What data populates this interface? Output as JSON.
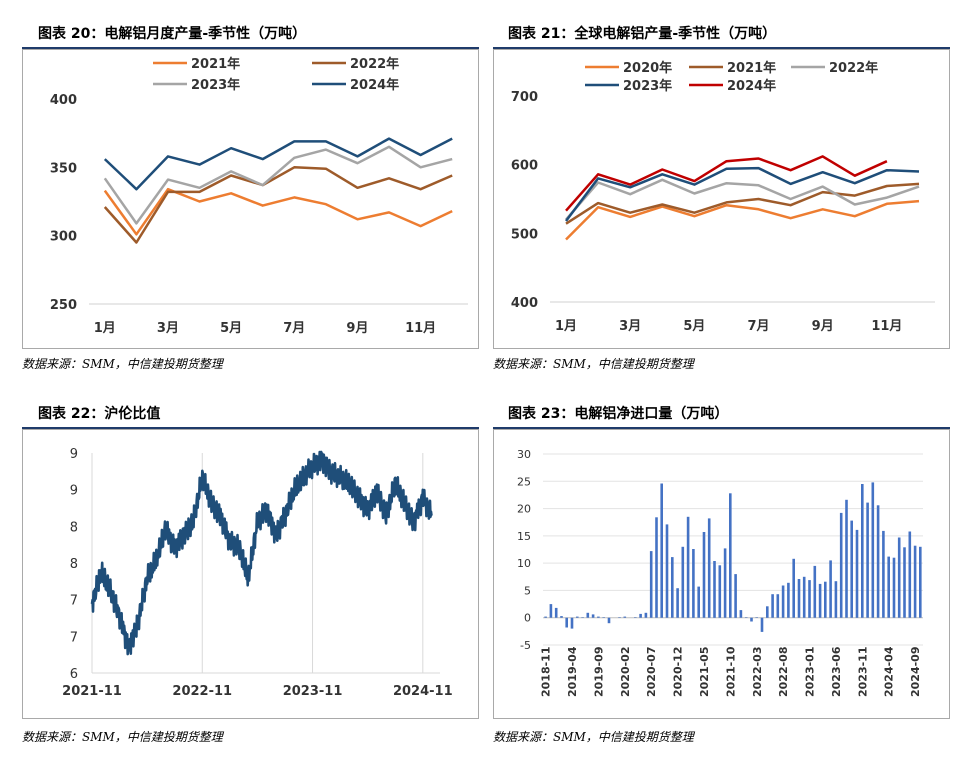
{
  "panels": [
    {
      "title": "图表 20：电解铝月度产量-季节性（万吨）",
      "source": "数据来源：SMM，中信建投期货整理"
    },
    {
      "title": "图表 21：全球电解铝产量-季节性（万吨）",
      "source": "数据来源：SMM，中信建投期货整理"
    },
    {
      "title": "图表 22：沪伦比值",
      "source": "数据来源：SMM，中信建投期货整理"
    },
    {
      "title": "图表 23：电解铝净进口量（万吨）",
      "source": "数据来源：SMM，中信建投期货整理"
    }
  ],
  "chart_data": [
    {
      "type": "line",
      "title": "",
      "categories": [
        "1月",
        "2月",
        "3月",
        "4月",
        "5月",
        "6月",
        "7月",
        "8月",
        "9月",
        "10月",
        "11月",
        "12月"
      ],
      "tick_labels": [
        "1月",
        "3月",
        "5月",
        "7月",
        "9月",
        "11月"
      ],
      "ylim": [
        250,
        400
      ],
      "yticks": [
        250,
        300,
        350,
        400
      ],
      "legend_position": "top",
      "grid": false,
      "series": [
        {
          "name": "2021年",
          "color": "#ed7d31",
          "values": [
            333,
            301,
            334,
            325,
            331,
            322,
            328,
            323,
            312,
            317,
            307,
            318
          ]
        },
        {
          "name": "2022年",
          "color": "#9e5b2a",
          "values": [
            321,
            295,
            332,
            332,
            344,
            337,
            350,
            349,
            335,
            342,
            334,
            344
          ]
        },
        {
          "name": "2023年",
          "color": "#a5a5a5",
          "values": [
            342,
            309,
            341,
            335,
            347,
            337,
            357,
            363,
            353,
            365,
            350,
            356
          ]
        },
        {
          "name": "2024年",
          "color": "#1f4e79",
          "values": [
            356,
            334,
            358,
            352,
            364,
            356,
            369,
            369,
            358,
            371,
            359,
            371
          ]
        }
      ]
    },
    {
      "type": "line",
      "title": "",
      "categories": [
        "1月",
        "2月",
        "3月",
        "4月",
        "5月",
        "6月",
        "7月",
        "8月",
        "9月",
        "10月",
        "11月",
        "12月"
      ],
      "tick_labels": [
        "1月",
        "3月",
        "5月",
        "7月",
        "9月",
        "11月"
      ],
      "ylim": [
        400,
        700
      ],
      "yticks": [
        400,
        500,
        600,
        700
      ],
      "legend_position": "top",
      "grid": false,
      "series": [
        {
          "name": "2020年",
          "color": "#ed7d31",
          "values": [
            491,
            538,
            524,
            539,
            525,
            541,
            535,
            522,
            535,
            525,
            543,
            547
          ]
        },
        {
          "name": "2021年",
          "color": "#9e5b2a",
          "values": [
            514,
            544,
            530,
            542,
            530,
            545,
            550,
            541,
            560,
            555,
            569,
            572
          ]
        },
        {
          "name": "2022年",
          "color": "#a5a5a5",
          "values": [
            520,
            574,
            557,
            578,
            558,
            573,
            570,
            550,
            568,
            542,
            552,
            568
          ]
        },
        {
          "name": "2023年",
          "color": "#1f4e79",
          "values": [
            518,
            580,
            567,
            586,
            571,
            594,
            595,
            572,
            589,
            573,
            592,
            590
          ]
        },
        {
          "name": "2024年",
          "color": "#c00000",
          "values": [
            533,
            586,
            571,
            593,
            576,
            605,
            609,
            592,
            612,
            584,
            605,
            null
          ]
        }
      ]
    },
    {
      "type": "line",
      "title": "",
      "x_range": [
        "2021-11",
        "2024-12"
      ],
      "tick_labels": [
        "2021-11",
        "2022-11",
        "2023-11",
        "2024-11"
      ],
      "ytick_labels": [
        "6",
        "7",
        "7",
        "8",
        "8",
        "9",
        "9"
      ],
      "ylim": [
        6.0,
        9.5
      ],
      "color": "#1f4e79",
      "grid": "vertical",
      "series": [
        {
          "name": "",
          "x": [
            "2021-11",
            "2021-12",
            "2022-01",
            "2022-02",
            "2022-03",
            "2022-04",
            "2022-05",
            "2022-06",
            "2022-07",
            "2022-08",
            "2022-09",
            "2022-10",
            "2022-11",
            "2022-12",
            "2023-01",
            "2023-02",
            "2023-03",
            "2023-04",
            "2023-05",
            "2023-06",
            "2023-07",
            "2023-08",
            "2023-09",
            "2023-10",
            "2023-11",
            "2023-12",
            "2024-01",
            "2024-02",
            "2024-03",
            "2024-04",
            "2024-05",
            "2024-06",
            "2024-07",
            "2024-08",
            "2024-09",
            "2024-10",
            "2024-11",
            "2024-12"
          ],
          "values": [
            7.1,
            7.6,
            7.3,
            6.9,
            6.4,
            6.8,
            7.5,
            7.8,
            8.3,
            8.0,
            8.2,
            8.4,
            9.1,
            8.7,
            8.5,
            8.1,
            8.0,
            7.5,
            8.4,
            8.6,
            8.2,
            8.5,
            8.9,
            9.1,
            9.3,
            9.4,
            9.2,
            9.1,
            9.0,
            8.8,
            8.6,
            8.9,
            8.5,
            9.0,
            8.7,
            8.4,
            8.8,
            8.5
          ]
        }
      ]
    },
    {
      "type": "bar",
      "title": "",
      "ylim": [
        -5,
        30
      ],
      "yticks": [
        -5,
        0,
        5,
        10,
        15,
        20,
        25,
        30
      ],
      "tick_labels": [
        "2018-11",
        "2019-04",
        "2019-09",
        "2020-02",
        "2020-07",
        "2020-12",
        "2021-05",
        "2021-10",
        "2022-03",
        "2022-08",
        "2023-01",
        "2023-06",
        "2023-11",
        "2024-04",
        "2024-09"
      ],
      "color": "#4472c4",
      "grid": true,
      "categories": [
        "2018-11",
        "2018-12",
        "2019-01",
        "2019-02",
        "2019-03",
        "2019-04",
        "2019-05",
        "2019-06",
        "2019-07",
        "2019-08",
        "2019-09",
        "2019-10",
        "2019-11",
        "2019-12",
        "2020-01",
        "2020-02",
        "2020-03",
        "2020-04",
        "2020-05",
        "2020-06",
        "2020-07",
        "2020-08",
        "2020-09",
        "2020-10",
        "2020-11",
        "2020-12",
        "2021-01",
        "2021-02",
        "2021-03",
        "2021-04",
        "2021-05",
        "2021-06",
        "2021-07",
        "2021-08",
        "2021-09",
        "2021-10",
        "2021-11",
        "2021-12",
        "2022-01",
        "2022-02",
        "2022-03",
        "2022-04",
        "2022-05",
        "2022-06",
        "2022-07",
        "2022-08",
        "2022-09",
        "2022-10",
        "2022-11",
        "2022-12",
        "2023-01",
        "2023-02",
        "2023-03",
        "2023-04",
        "2023-05",
        "2023-06",
        "2023-07",
        "2023-08",
        "2023-09",
        "2023-10",
        "2023-11",
        "2023-12",
        "2024-01",
        "2024-02",
        "2024-03",
        "2024-04",
        "2024-05",
        "2024-06",
        "2024-07",
        "2024-08",
        "2024-09",
        "2024-10"
      ],
      "values": [
        0.2,
        2.5,
        1.8,
        0.3,
        -1.8,
        -2.0,
        0.2,
        0.1,
        0.9,
        0.6,
        0.2,
        0.1,
        -1.0,
        0.0,
        0.1,
        0.2,
        0.0,
        0.1,
        0.7,
        0.9,
        12.2,
        18.4,
        24.6,
        17.1,
        11.1,
        5.4,
        13.0,
        18.5,
        12.6,
        5.7,
        15.7,
        18.2,
        10.4,
        9.6,
        12.7,
        22.8,
        8.0,
        1.4,
        0.1,
        -0.7,
        0.1,
        -2.6,
        2.1,
        4.3,
        4.3,
        5.9,
        6.4,
        10.8,
        7.1,
        7.5,
        6.9,
        9.5,
        6.2,
        6.6,
        10.5,
        6.7,
        19.2,
        21.6,
        17.8,
        16.1,
        24.5,
        21.1,
        24.8,
        20.6,
        15.9,
        11.2,
        11.0,
        14.7,
        12.9,
        15.8,
        13.2,
        13.0
      ]
    }
  ]
}
